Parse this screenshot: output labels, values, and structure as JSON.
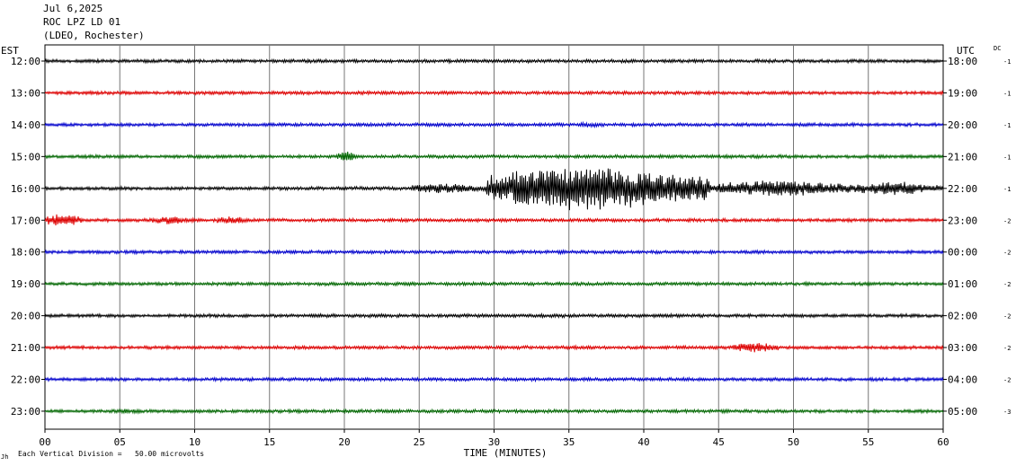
{
  "header": {
    "date": "Jul 6,2025",
    "station": "ROC LPZ LD 01",
    "network": "(LDEO, Rochester)"
  },
  "left_axis_title": "EST",
  "right_axis_title": "UTC",
  "dc_title": "DC",
  "footer": {
    "scale_note": "Each Vertical Division =   50.00 microvolts"
  },
  "chart_data": {
    "type": "line",
    "title": "ROC LPZ LD 01",
    "xlabel": "TIME (MINUTES)",
    "xlim": [
      0,
      60
    ],
    "x_ticks": [
      "00",
      "05",
      "10",
      "15",
      "20",
      "25",
      "30",
      "35",
      "40",
      "45",
      "50",
      "55",
      "60"
    ],
    "grid": true,
    "trace_colors": [
      "#000000",
      "#dd0000",
      "#0000cc",
      "#006600"
    ],
    "rows": [
      {
        "est": "12:00",
        "utc": "18:00",
        "dc": "-1",
        "color": "#000000",
        "bursts": []
      },
      {
        "est": "13:00",
        "utc": "19:00",
        "dc": "-1",
        "color": "#dd0000",
        "bursts": []
      },
      {
        "est": "14:00",
        "utc": "20:00",
        "dc": "-1",
        "color": "#0000cc",
        "bursts": [
          {
            "start": 35.5,
            "end": 37.5,
            "amp": 3
          }
        ]
      },
      {
        "est": "15:00",
        "utc": "21:00",
        "dc": "-1",
        "color": "#006600",
        "bursts": [
          {
            "start": 19.5,
            "end": 21.0,
            "amp": 6
          }
        ]
      },
      {
        "est": "16:00",
        "utc": "22:00",
        "dc": "-1",
        "color": "#000000",
        "bursts": [
          {
            "start": 24.5,
            "end": 29.5,
            "amp": 6
          },
          {
            "start": 29.5,
            "end": 44.5,
            "amp": 27
          },
          {
            "start": 44.5,
            "end": 54.0,
            "amp": 10
          },
          {
            "start": 54.0,
            "end": 60.0,
            "amp": 8
          }
        ]
      },
      {
        "est": "17:00",
        "utc": "23:00",
        "dc": "-2",
        "color": "#dd0000",
        "bursts": [
          {
            "start": 0.0,
            "end": 2.5,
            "amp": 8
          },
          {
            "start": 7.0,
            "end": 10.0,
            "amp": 5
          },
          {
            "start": 11.5,
            "end": 13.5,
            "amp": 6
          }
        ]
      },
      {
        "est": "18:00",
        "utc": "00:00",
        "dc": "-2",
        "color": "#0000cc",
        "bursts": []
      },
      {
        "est": "19:00",
        "utc": "01:00",
        "dc": "-2",
        "color": "#006600",
        "bursts": []
      },
      {
        "est": "20:00",
        "utc": "02:00",
        "dc": "-2",
        "color": "#000000",
        "bursts": []
      },
      {
        "est": "21:00",
        "utc": "03:00",
        "dc": "-2",
        "color": "#dd0000",
        "bursts": [
          {
            "start": 46.0,
            "end": 49.0,
            "amp": 7
          }
        ]
      },
      {
        "est": "22:00",
        "utc": "04:00",
        "dc": "-2",
        "color": "#0000cc",
        "bursts": []
      },
      {
        "est": "23:00",
        "utc": "05:00",
        "dc": "-3",
        "color": "#006600",
        "bursts": [
          {
            "start": 4.5,
            "end": 7.0,
            "amp": 3
          }
        ]
      }
    ]
  }
}
